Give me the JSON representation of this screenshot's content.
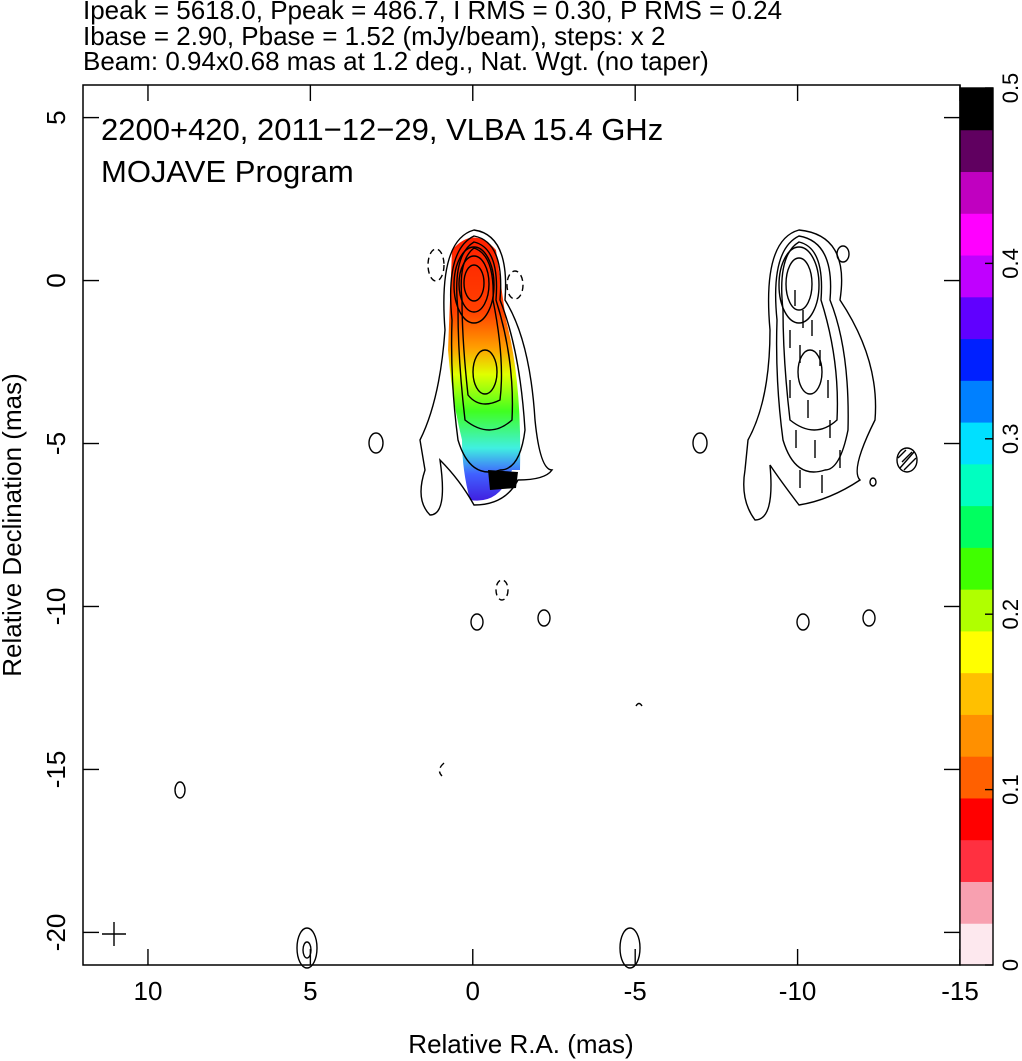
{
  "chart_data": {
    "type": "image",
    "title_lines": [
      "Ipeak = 5618.0, Ppeak = 486.7, I RMS = 0.30, P RMS = 0.24",
      "Ibase = 2.90, Pbase = 1.52 (mJy/beam), steps: x 2",
      "Beam: 0.94x0.68 mas at 1.2 deg., Nat. Wgt. (no taper)"
    ],
    "annotations": [
      "2200+420, 2011−12−29, VLBA 15.4 GHz",
      "MOJAVE Program"
    ],
    "xlabel": "Relative R.A. (mas)",
    "ylabel": "Relative Declination (mas)",
    "xlim": [
      12,
      -15
    ],
    "xticks": [
      10,
      5,
      0,
      -5,
      -10,
      -15
    ],
    "ylim": [
      -21,
      6
    ],
    "yticks": [
      5,
      0,
      -5,
      -10,
      -15,
      -20
    ],
    "colorbar": {
      "lim": [
        0,
        0.5
      ],
      "ticks": [
        0,
        0.1,
        0.2,
        0.3,
        0.4,
        0.5
      ],
      "colors": [
        "#fde8ee",
        "#f8a0b0",
        "#ff3040",
        "#ff0000",
        "#ff6000",
        "#ff9000",
        "#ffc000",
        "#ffff00",
        "#b0ff00",
        "#40ff00",
        "#00ff60",
        "#00ffc0",
        "#00e0ff",
        "#0080ff",
        "#0020ff",
        "#6000ff",
        "#c000ff",
        "#ff00ff",
        "#c000c0",
        "#600060",
        "#000000"
      ]
    }
  }
}
